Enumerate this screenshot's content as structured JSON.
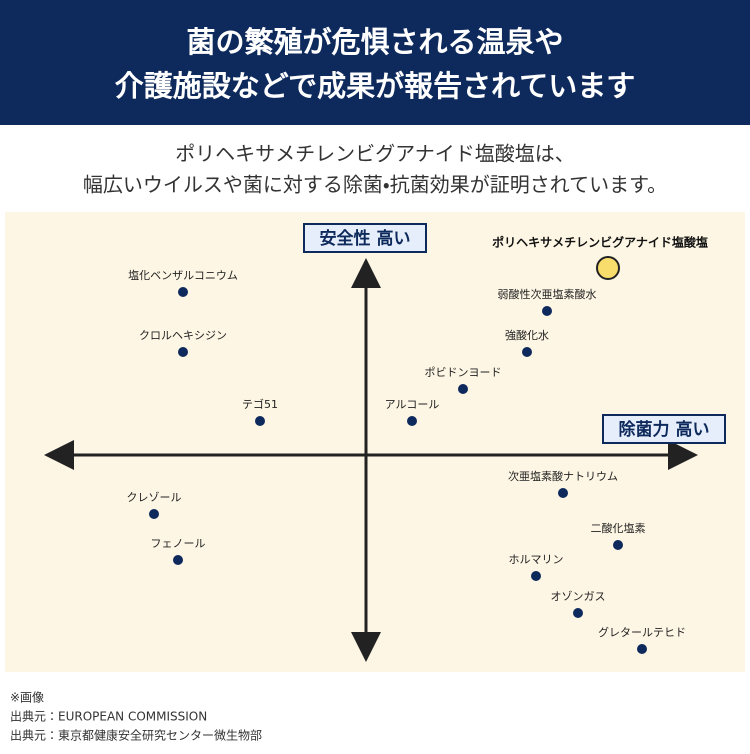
{
  "header": {
    "title": [
      "菌の繁殖が危惧される温泉や",
      "介護施設などで成果が報告されています"
    ]
  },
  "subtitle": [
    "ポリヘキサメチレンビグアナイド塩酸塩は、",
    "幅広いウイルスや菌に対する除菌・抗菌効果が証明されています。"
  ],
  "map": {
    "y_axis_label": "安全性 高い",
    "x_axis_label": "除菌力 高い",
    "highlight": "ポリヘキサメチレンビグアナイド塩酸塩",
    "items": [
      "塩化ベンザルコニウム",
      "クロルヘキシジン",
      "テゴ51",
      "アルコール",
      "ポビドンヨード",
      "強酸化水",
      "弱酸性次亜塩素酸水",
      "次亜塩素酸ナトリウム",
      "二酸化塩素",
      "ホルマリン",
      "オゾンガス",
      "グレタールテヒド",
      "クレゾール",
      "フェノール"
    ]
  },
  "notes": [
    "※画像",
    "出典元：EUROPEAN COMMISSION",
    "出典元：東京都健康安全研究センター微生物部"
  ]
}
